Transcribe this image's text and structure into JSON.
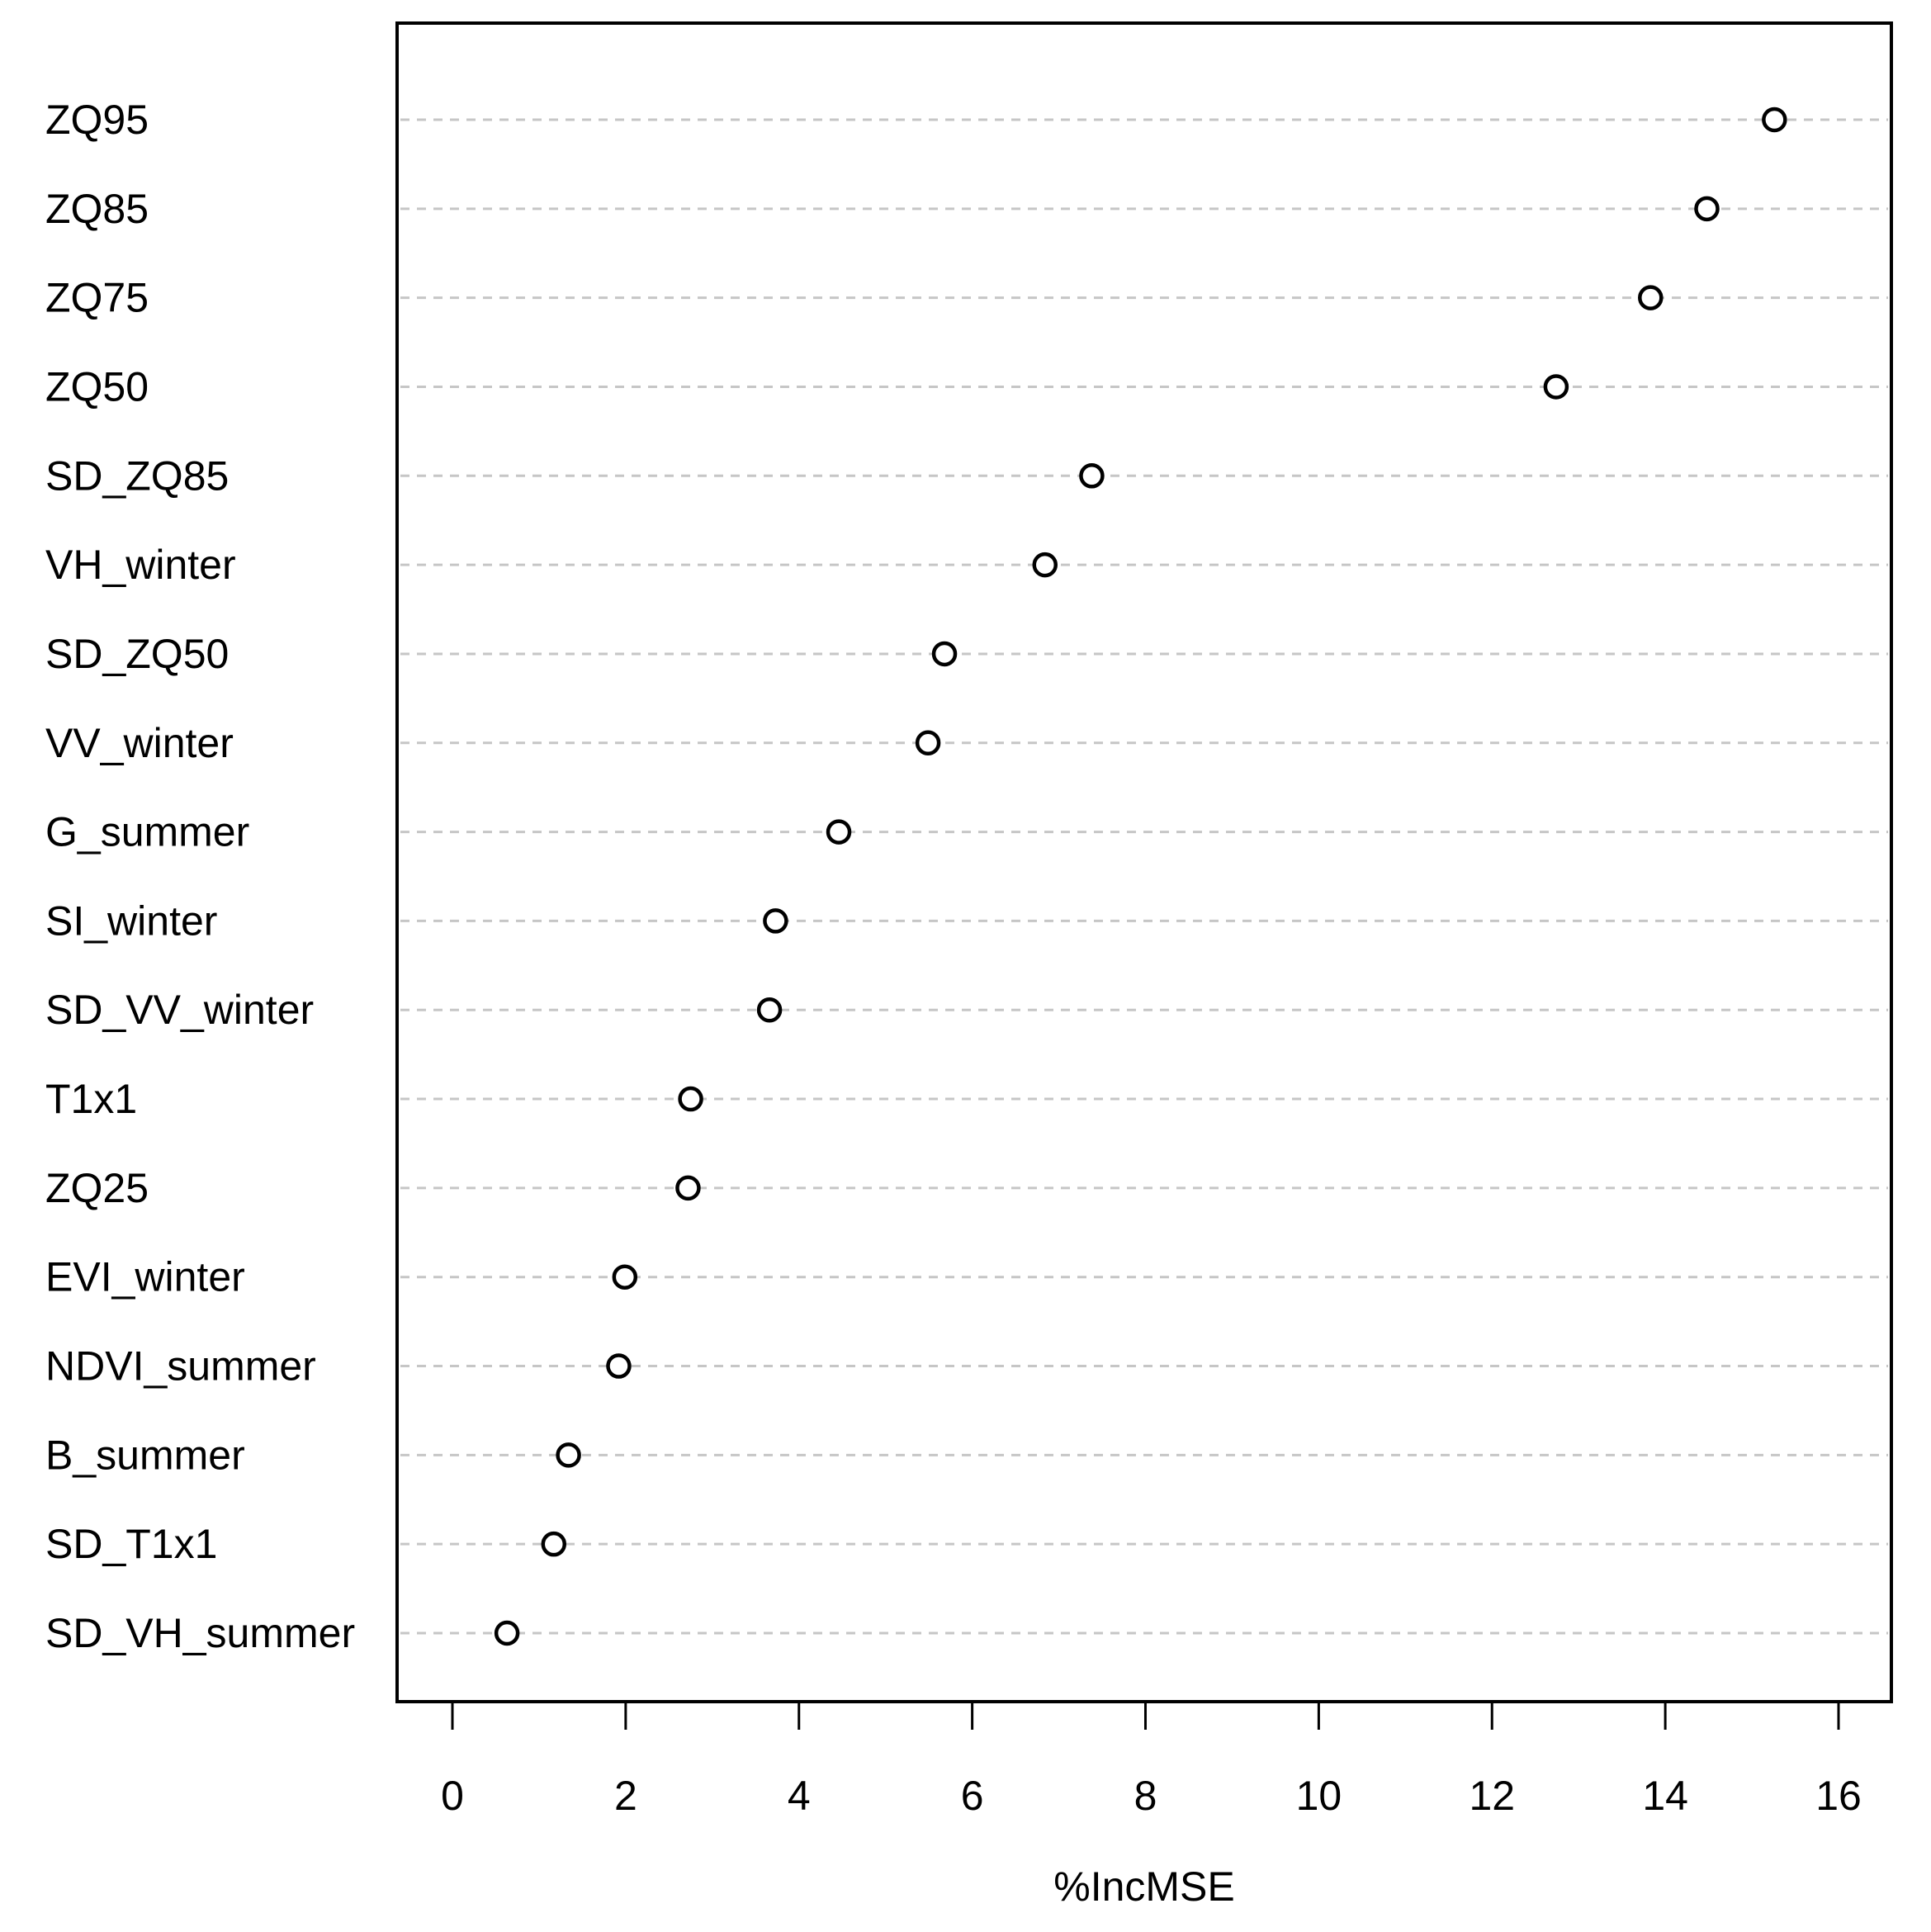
{
  "chart_data": {
    "type": "scatter",
    "variant": "dotchart-variable-importance",
    "title": "",
    "xlabel": "%IncMSE",
    "ylabel": "",
    "legend": "none",
    "grid": "horizontal-dashed",
    "background": "#ffffff",
    "axis_color": "#000000",
    "gridline_color": "#c6c6c6",
    "point_style": {
      "shape": "open-circle",
      "stroke": "#000000",
      "fill": "#ffffff"
    },
    "xlim": [
      0,
      16
    ],
    "x_ticks": [
      0,
      2,
      4,
      6,
      8,
      10,
      12,
      14,
      16
    ],
    "categories_top_to_bottom": [
      "ZQ95",
      "ZQ85",
      "ZQ75",
      "ZQ50",
      "SD_ZQ85",
      "VH_winter",
      "SD_ZQ50",
      "VV_winter",
      "G_summer",
      "SI_winter",
      "SD_VV_winter",
      "T1x1",
      "ZQ25",
      "EVI_winter",
      "NDVI_summer",
      "B_summer",
      "SD_T1x1",
      "SD_VH_summer"
    ],
    "values": [
      15.26,
      14.48,
      13.83,
      12.74,
      7.38,
      6.84,
      5.68,
      5.49,
      4.46,
      3.73,
      3.66,
      2.75,
      2.72,
      1.99,
      1.92,
      1.34,
      1.17,
      0.63
    ]
  }
}
